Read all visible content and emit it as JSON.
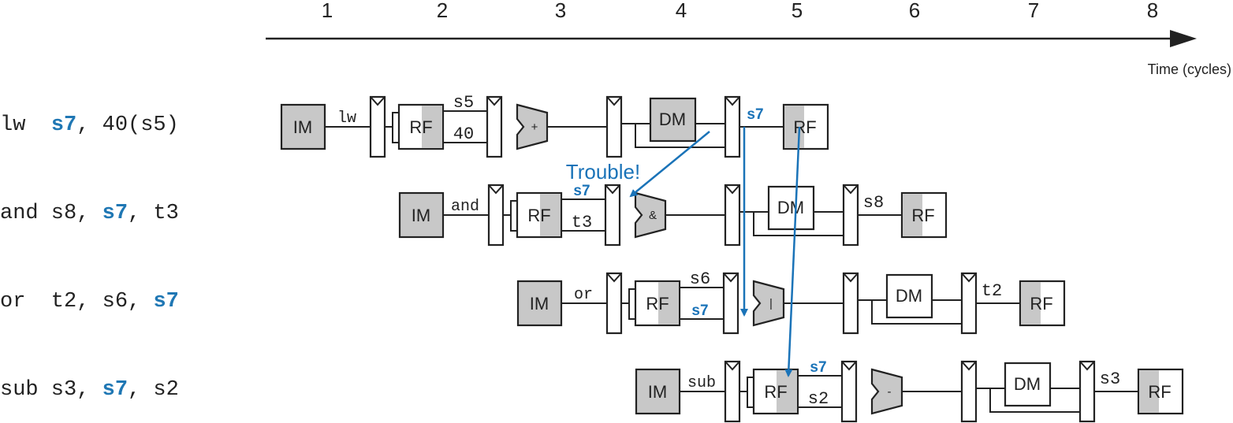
{
  "timeline": {
    "cycles": [
      "1",
      "2",
      "3",
      "4",
      "5",
      "6",
      "7",
      "8"
    ],
    "axis_label": "Time (cycles)"
  },
  "colors": {
    "highlight": "#1a73b8",
    "stage_fill": "#c8c8c8",
    "line": "#222222"
  },
  "instructions": [
    {
      "parts": [
        "lw  ",
        "s7",
        ", 40(s5)"
      ],
      "stages": {
        "im": "IM",
        "rf": "RF",
        "dm": "DM",
        "wb": "RF"
      },
      "opcode": "lw",
      "alu_symbol": "+",
      "rf_top": "s5",
      "rf_bottom": "40",
      "mem_label": "s7",
      "mem_label_hl": true,
      "rf_bottom_hl": false
    },
    {
      "parts": [
        "and s8, ",
        "s7",
        ", t3"
      ],
      "stages": {
        "im": "IM",
        "rf": "RF",
        "dm": "DM",
        "wb": "RF"
      },
      "opcode": "and",
      "alu_symbol": "&",
      "rf_top": "s7",
      "rf_bottom": "t3",
      "rf_top_hl": true,
      "mem_label": "s8",
      "mem_label_hl": false
    },
    {
      "parts": [
        "or  t2, s6, ",
        "s7",
        ""
      ],
      "stages": {
        "im": "IM",
        "rf": "RF",
        "dm": "DM",
        "wb": "RF"
      },
      "opcode": "or",
      "alu_symbol": "|",
      "rf_top": "s6",
      "rf_bottom": "s7",
      "rf_bottom_hl": true,
      "mem_label": "t2",
      "mem_label_hl": false
    },
    {
      "parts": [
        "sub s3, ",
        "s7",
        ", s2"
      ],
      "stages": {
        "im": "IM",
        "rf": "RF",
        "dm": "DM",
        "wb": "RF"
      },
      "opcode": "sub",
      "alu_symbol": "-",
      "rf_top": "s7",
      "rf_bottom": "s2",
      "rf_top_hl": true,
      "mem_label": "s3",
      "mem_label_hl": false
    }
  ],
  "annotation": {
    "trouble": "Trouble!"
  }
}
